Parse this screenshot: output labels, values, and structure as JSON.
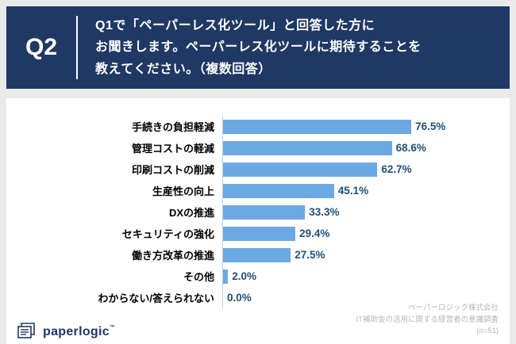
{
  "header": {
    "q_label": "Q2",
    "question_lines": [
      "Q1で「ペーパーレス化ツール」と回答した方に",
      "お聞きします。ペーパーレス化ツールに期待することを",
      "教えてください。（複数回答）"
    ]
  },
  "chart_data": {
    "type": "bar",
    "orientation": "horizontal",
    "title": "",
    "categories": [
      "手続きの負担軽減",
      "管理コストの軽減",
      "印刷コストの削減",
      "生産性の向上",
      "DXの推進",
      "セキュリティの強化",
      "働き方改革の推進",
      "その他",
      "わからない/答えられない"
    ],
    "values": [
      76.5,
      68.6,
      62.7,
      45.1,
      33.3,
      29.4,
      27.5,
      2.0,
      0.0
    ],
    "value_labels": [
      "76.5%",
      "68.6%",
      "62.7%",
      "45.1%",
      "33.3%",
      "29.4%",
      "27.5%",
      "2.0%",
      "0.0%"
    ],
    "xlim": [
      0,
      100
    ],
    "grid": false,
    "legend": false,
    "bar_color": "#6CA9E4",
    "value_label_color": "#1F4E79",
    "header_color": "#203864"
  },
  "footer": {
    "lines": [
      "ペーパーロジック株式会社",
      "IT補助金の活用に関する経営者の意識調査",
      "(n=51)"
    ]
  },
  "logo": {
    "text": "paperlogic",
    "tm": "™"
  }
}
